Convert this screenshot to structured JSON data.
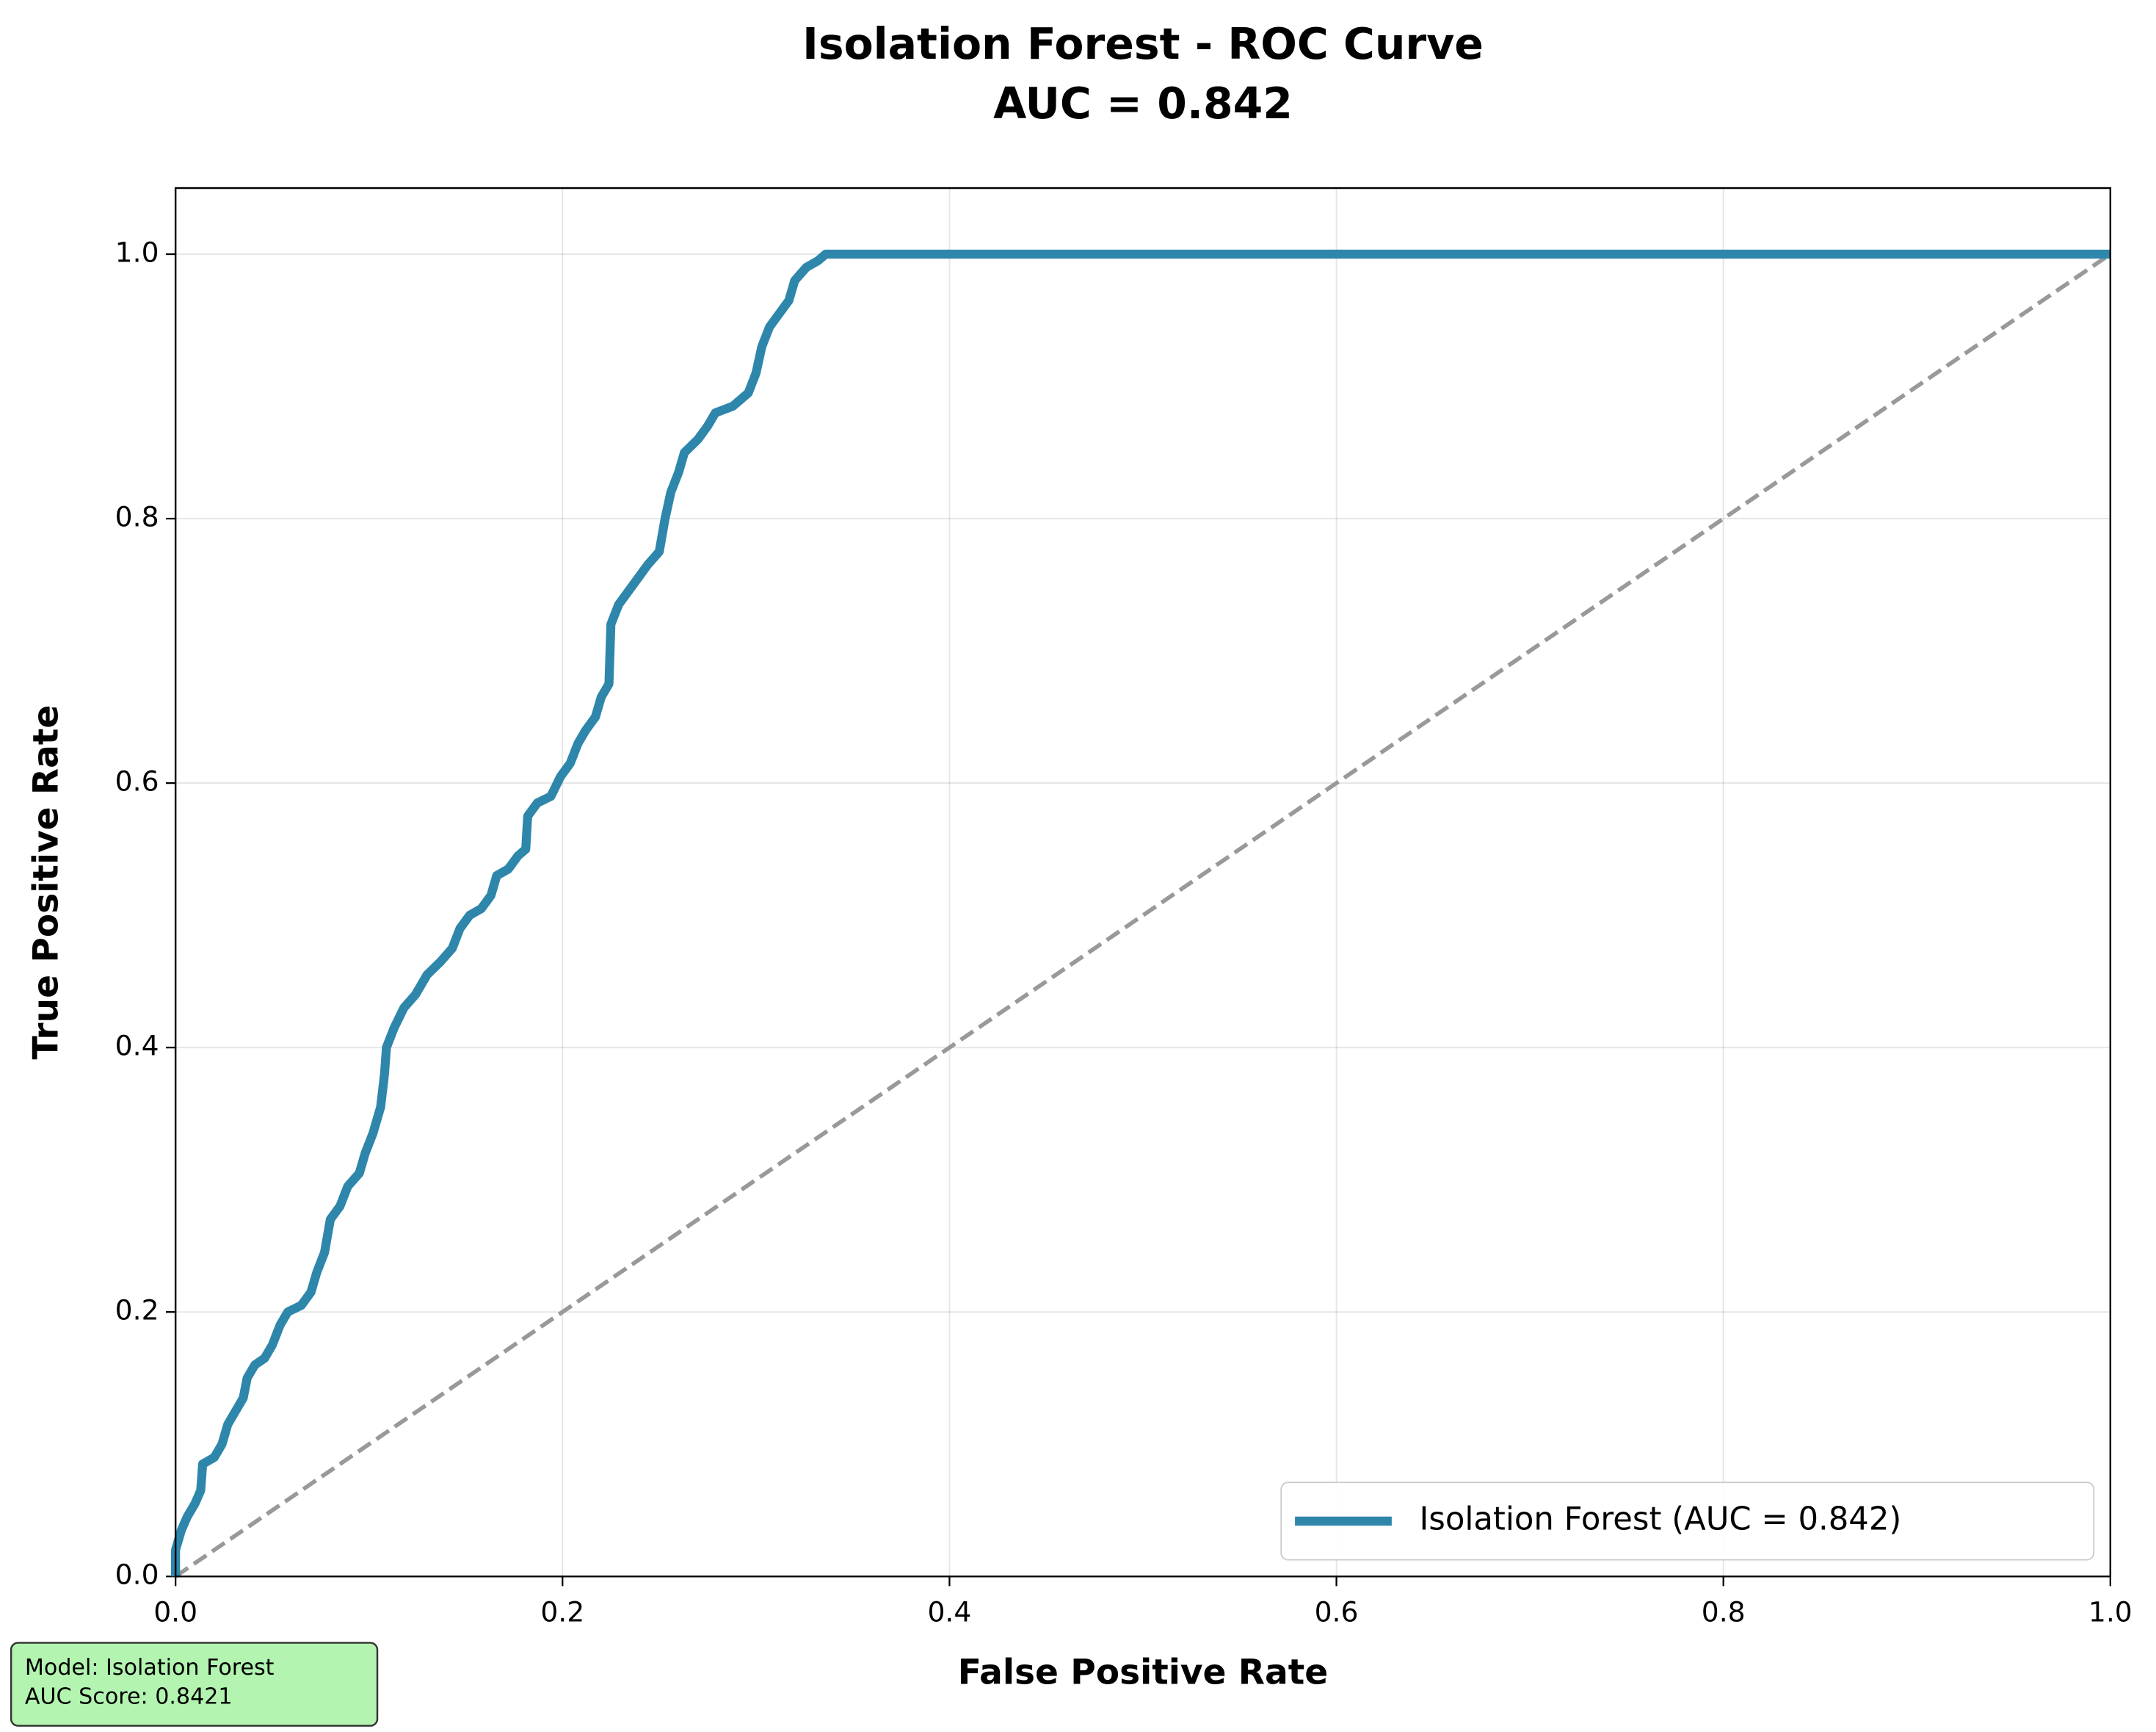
{
  "chart_data": {
    "type": "line",
    "title": "Isolation Forest - ROC Curve",
    "subtitle": "AUC = 0.842",
    "xlabel": "False Positive Rate",
    "ylabel": "True Positive Rate",
    "xlim": [
      0,
      1
    ],
    "ylim": [
      0,
      1.05
    ],
    "xticks": [
      {
        "value": 0,
        "label": "0.0"
      },
      0.2,
      0.4,
      0.6,
      0.8,
      {
        "value": 1,
        "label": "1.0"
      }
    ],
    "yticks": [
      {
        "value": 0,
        "label": "0.0"
      },
      0.2,
      0.4,
      0.6,
      0.8,
      {
        "value": 1,
        "label": "1.0"
      }
    ],
    "grid": true,
    "legend": "lower right",
    "series": [
      {
        "name": "Isolation Forest (AUC = 0.842)",
        "color": "#2e86ab",
        "x": [
          0,
          0,
          0.003,
          0.006,
          0.01,
          0.013,
          0.014,
          0.02,
          0.024,
          0.027,
          0.031,
          0.035,
          0.037,
          0.041,
          0.046,
          0.05,
          0.054,
          0.058,
          0.065,
          0.07,
          0.073,
          0.077,
          0.08,
          0.085,
          0.089,
          0.095,
          0.098,
          0.102,
          0.106,
          0.108,
          0.109,
          0.113,
          0.118,
          0.124,
          0.13,
          0.137,
          0.143,
          0.147,
          0.152,
          0.158,
          0.163,
          0.166,
          0.172,
          0.177,
          0.181,
          0.182,
          0.187,
          0.194,
          0.199,
          0.204,
          0.208,
          0.212,
          0.217,
          0.22,
          0.224,
          0.225,
          0.229,
          0.234,
          0.239,
          0.244,
          0.25,
          0.253,
          0.256,
          0.26,
          0.263,
          0.27,
          0.275,
          0.279,
          0.288,
          0.296,
          0.3,
          0.303,
          0.307,
          0.312,
          0.317,
          0.32,
          0.326,
          0.332,
          0.336,
          1
        ],
        "y": [
          0,
          0.02,
          0.035,
          0.045,
          0.055,
          0.065,
          0.085,
          0.09,
          0.1,
          0.115,
          0.125,
          0.135,
          0.15,
          0.16,
          0.165,
          0.175,
          0.19,
          0.2,
          0.205,
          0.215,
          0.23,
          0.245,
          0.27,
          0.28,
          0.295,
          0.305,
          0.32,
          0.335,
          0.355,
          0.38,
          0.4,
          0.415,
          0.43,
          0.44,
          0.455,
          0.465,
          0.475,
          0.49,
          0.5,
          0.505,
          0.515,
          0.53,
          0.535,
          0.545,
          0.55,
          0.575,
          0.585,
          0.59,
          0.605,
          0.615,
          0.63,
          0.64,
          0.65,
          0.665,
          0.675,
          0.72,
          0.735,
          0.745,
          0.755,
          0.765,
          0.775,
          0.8,
          0.82,
          0.835,
          0.85,
          0.86,
          0.87,
          0.88,
          0.885,
          0.895,
          0.91,
          0.93,
          0.945,
          0.955,
          0.965,
          0.98,
          0.99,
          0.995,
          1,
          1
        ]
      }
    ],
    "reference_line": {
      "x": [
        0,
        1
      ],
      "y": [
        0,
        1
      ],
      "color": "#999999"
    },
    "annotation": [
      "Model: Isolation Forest",
      "AUC Score: 0.8421"
    ],
    "annotation_color": "#b3f5b0"
  }
}
